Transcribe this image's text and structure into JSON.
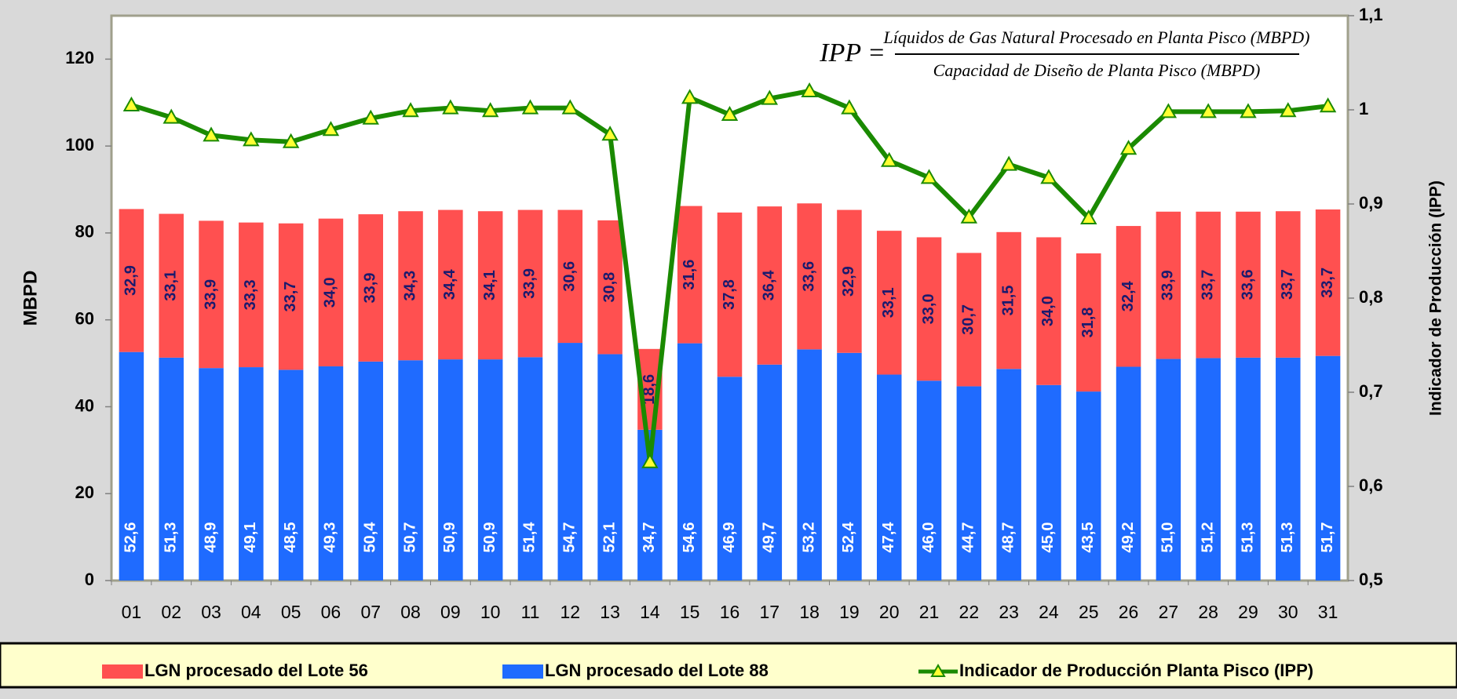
{
  "chart_data": {
    "type": "bar",
    "stacked": true,
    "annotation": {
      "lhs": "IPP =",
      "numerator": "Líquidos de Gas Natural Procesado en Planta Pisco (MBPD)",
      "denominator": "Capacidad de Diseño de Planta Pisco (MBPD)"
    },
    "y_label": "MBPD",
    "y2_label": "Indicador de Producción (IPP)",
    "categories": [
      "01",
      "02",
      "03",
      "04",
      "05",
      "06",
      "07",
      "08",
      "09",
      "10",
      "11",
      "12",
      "13",
      "14",
      "15",
      "16",
      "17",
      "18",
      "19",
      "20",
      "21",
      "22",
      "23",
      "24",
      "25",
      "26",
      "27",
      "28",
      "29",
      "30",
      "31"
    ],
    "series": [
      {
        "name": "LGN procesado del Lote 88",
        "color": "#1f6bff",
        "label_color": "#ffffff",
        "values": [
          52.6,
          51.3,
          48.9,
          49.1,
          48.5,
          49.3,
          50.4,
          50.7,
          50.9,
          50.9,
          51.4,
          54.7,
          52.1,
          34.7,
          54.6,
          46.9,
          49.7,
          53.2,
          52.4,
          47.4,
          46.0,
          44.7,
          48.7,
          45.0,
          43.5,
          49.2,
          51.0,
          51.2,
          51.3,
          51.3,
          51.7
        ],
        "value_labels": [
          "52,6",
          "51,3",
          "48,9",
          "49,1",
          "48,5",
          "49,3",
          "50,4",
          "50,7",
          "50,9",
          "50,9",
          "51,4",
          "54,7",
          "52,1",
          "34,7",
          "54,6",
          "46,9",
          "49,7",
          "53,2",
          "52,4",
          "47,4",
          "46,0",
          "44,7",
          "48,7",
          "45,0",
          "43,5",
          "49,2",
          "51,0",
          "51,2",
          "51,3",
          "51,3",
          "51,7"
        ]
      },
      {
        "name": "LGN procesado del Lote 56",
        "color": "#ff5050",
        "label_color": "#1a1a6e",
        "values": [
          32.9,
          33.1,
          33.9,
          33.3,
          33.7,
          34.0,
          33.9,
          34.3,
          34.4,
          34.1,
          33.9,
          30.6,
          30.8,
          18.6,
          31.6,
          37.8,
          36.4,
          33.6,
          32.9,
          33.1,
          33.0,
          30.7,
          31.5,
          34.0,
          31.8,
          32.4,
          33.9,
          33.7,
          33.6,
          33.7,
          33.7
        ],
        "value_labels": [
          "32,9",
          "33,1",
          "33,9",
          "33,3",
          "33,7",
          "34,0",
          "33,9",
          "34,3",
          "34,4",
          "34,1",
          "33,9",
          "30,6",
          "30,8",
          "18,6",
          "31,6",
          "37,8",
          "36,4",
          "33,6",
          "32,9",
          "33,1",
          "33,0",
          "30,7",
          "31,5",
          "34,0",
          "31,8",
          "32,4",
          "33,9",
          "33,7",
          "33,6",
          "33,7",
          "33,7"
        ]
      },
      {
        "name": "Indicador de Producción Planta Pisco (IPP)",
        "type": "line",
        "axis": "y2",
        "color": "#1a8a00",
        "marker_color": "#ffff33",
        "values": [
          1.005,
          0.992,
          0.973,
          0.968,
          0.966,
          0.979,
          0.991,
          0.999,
          1.002,
          0.999,
          1.002,
          1.002,
          0.974,
          0.626,
          1.013,
          0.995,
          1.012,
          1.02,
          1.002,
          0.946,
          0.928,
          0.886,
          0.942,
          0.928,
          0.885,
          0.959,
          0.998,
          0.998,
          0.998,
          0.999,
          1.004
        ]
      }
    ],
    "ylim": [
      0,
      130
    ],
    "yticks": [
      0,
      20,
      40,
      60,
      80,
      100,
      120
    ],
    "y2lim": [
      0.5,
      1.1
    ],
    "y2ticks": [
      {
        "value": 0.5,
        "label": "0,5"
      },
      {
        "value": 0.6,
        "label": "0,6"
      },
      {
        "value": 0.7,
        "label": "0,7"
      },
      {
        "value": 0.8,
        "label": "0,8"
      },
      {
        "value": 0.9,
        "label": "0,9"
      },
      1,
      {
        "value": 1.1,
        "label": "1,1"
      }
    ],
    "legend_order": [
      1,
      0,
      2
    ],
    "legend": "bottom"
  }
}
